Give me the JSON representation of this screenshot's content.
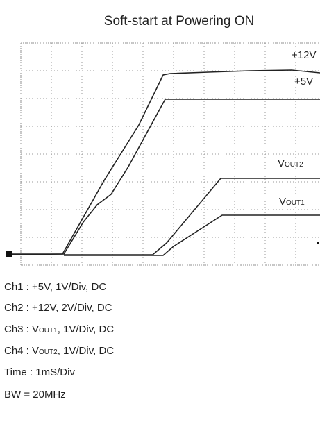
{
  "title": "Soft-start at Powering ON",
  "traces": [
    {
      "label": [
        "+12V"
      ]
    },
    {
      "label": [
        "+5V"
      ]
    },
    {
      "label": [
        "V",
        "OUT2"
      ]
    },
    {
      "label": [
        "V",
        "OUT1"
      ]
    }
  ],
  "notes": [
    [
      "Ch1 : +5V, 1V/Div, DC"
    ],
    [
      "Ch2 : +12V, 2V/Div, DC"
    ],
    [
      "Ch3 : V",
      "OUT1",
      ", 1V/Div, DC"
    ],
    [
      "Ch4 : V",
      "OUT2",
      ", 1V/Div, DC"
    ],
    [
      "Time : 1mS/Div"
    ],
    [
      "BW = 20MHz"
    ]
  ]
}
